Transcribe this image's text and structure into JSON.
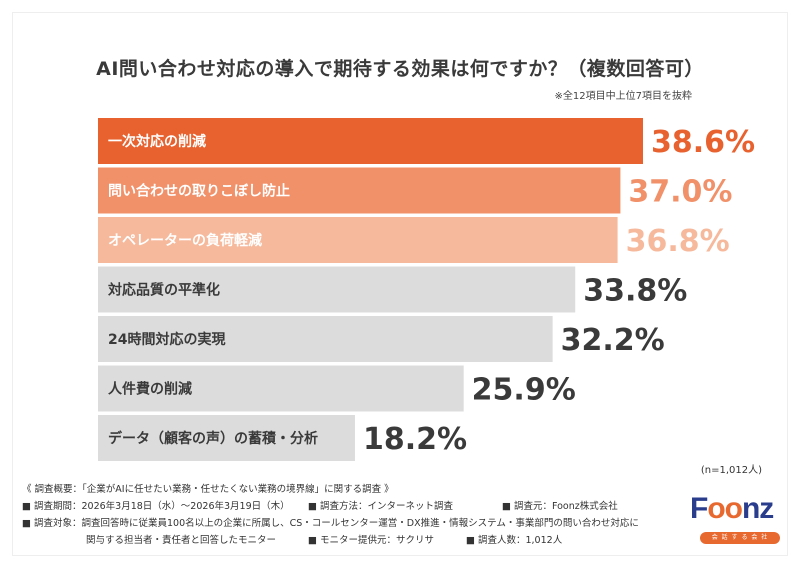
{
  "chart_data": {
    "type": "bar",
    "orientation": "horizontal",
    "title": "AI問い合わせ対応の導入で期待する効果は何ですか？（複数回答可）",
    "subtitle": "※全12項目中上位7項目を抜粋",
    "categories": [
      "一次対応の削減",
      "問い合わせの取りこぼし防止",
      "オペレーターの負荷軽減",
      "対応品質の平準化",
      "24時間対応の実現",
      "人件費の削減",
      "データ（顧客の声）の蓄積・分析"
    ],
    "values": [
      38.6,
      37.0,
      36.8,
      33.8,
      32.2,
      25.9,
      18.2
    ],
    "value_labels": [
      "38.6%",
      "37.0%",
      "36.8%",
      "33.8%",
      "32.2%",
      "25.9%",
      "18.2%"
    ],
    "unit": "%",
    "xlim": [
      0,
      40
    ],
    "colors": {
      "top1": "#e8622f",
      "top2": "#f1916a",
      "top3": "#f6b99c",
      "other": "#dcdcdc",
      "top1_value": "#e8622f",
      "top2_value": "#f1916a",
      "top3_value": "#f6b99c",
      "other_value": "#3a3a3a",
      "top_label": "#ffffff",
      "other_label": "#3a3a3a"
    },
    "sample_note": "(n=1,012人)"
  },
  "footer": {
    "heading": "《 調査概要：「企業がAIに任せたい業務・任せたくない業務の境界線」に関する調査 》",
    "period": "■ 調査期間：2026年3月18日（水）〜2026年3月19日（木）",
    "method": "■ 調査方法：インターネット調査",
    "source": "■ 調査元：Foonz株式会社",
    "target_1": "■ 調査対象：調査回答時に従業員100名以上の企業に所属し、CS・コールセンター運営・DX推進・情報システム・事業部門の問い合わせ対応に",
    "target_2": "関与する担当者・責任者と回答したモニター",
    "provider": "■ モニター提供元：サクリサ",
    "count": "■ 調査人数：1,012人"
  },
  "logo": {
    "text_pre": "F",
    "text_o": "oo",
    "text_post": "nz",
    "tagline": "会 話 す る 会 社"
  }
}
